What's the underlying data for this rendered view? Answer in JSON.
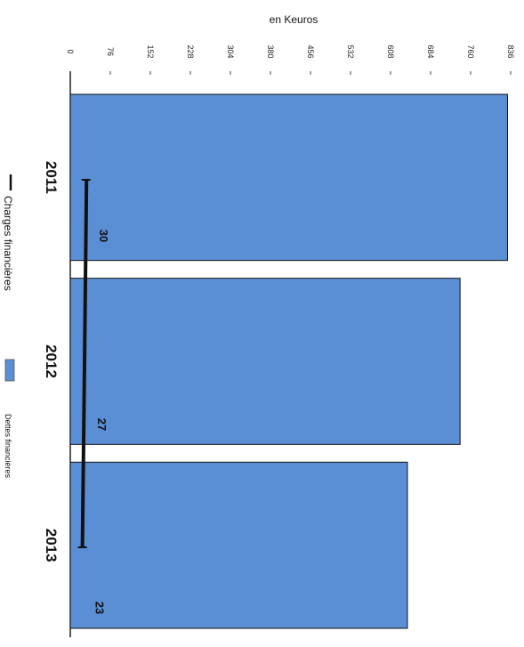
{
  "chart_data": {
    "type": "bar",
    "orientation": "horizontal",
    "unit_label": "en Keuros",
    "categories": [
      "2011",
      "2012",
      "2013"
    ],
    "xlim": [
      0,
      836
    ],
    "ticks": [
      0,
      76,
      152,
      228,
      304,
      380,
      456,
      532,
      608,
      684,
      760,
      836
    ],
    "series": [
      {
        "name": "Dettes financières",
        "type": "bar",
        "color": "#5a8fd6",
        "values": [
          830,
          740,
          640
        ]
      },
      {
        "name": "Charges financières",
        "type": "line",
        "color": "#111111",
        "values": [
          30,
          27,
          23
        ],
        "labels": [
          "30",
          "27",
          "23"
        ]
      }
    ],
    "legend": {
      "placement": "left"
    },
    "grid": false
  }
}
